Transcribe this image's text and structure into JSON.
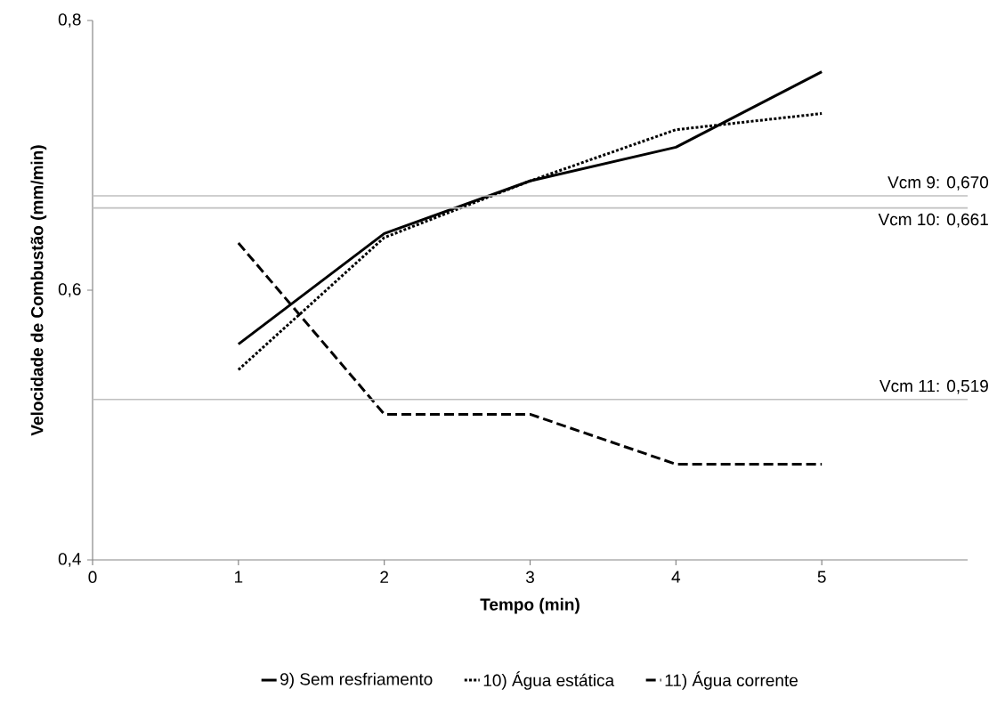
{
  "chart_data": {
    "type": "line",
    "xlabel": "Tempo (min)",
    "ylabel": "Velocidade de Combustão (mm/min)",
    "x": [
      1,
      2,
      3,
      4,
      5
    ],
    "series": [
      {
        "name": "9) Sem resfriamento",
        "color": "#000000",
        "line_style": "solid",
        "values": [
          0.56,
          0.642,
          0.681,
          0.706,
          0.762
        ]
      },
      {
        "name": "10) Água estática",
        "color": "#000000",
        "line_style": "dotted",
        "values": [
          0.541,
          0.639,
          0.681,
          0.719,
          0.731
        ]
      },
      {
        "name": "11) Água corrente",
        "color": "#000000",
        "line_style": "dashed",
        "values": [
          0.635,
          0.508,
          0.508,
          0.471,
          0.471
        ]
      }
    ],
    "xlim": [
      0,
      6
    ],
    "ylim": [
      0.4,
      0.8
    ],
    "xticks": [
      0,
      1,
      2,
      3,
      4,
      5
    ],
    "yticks": [
      {
        "value": 0.4,
        "label": "0,4"
      },
      {
        "value": 0.6,
        "label": "0,6"
      },
      {
        "value": 0.8,
        "label": "0,8"
      }
    ],
    "ref_lines": [
      {
        "axis": "y",
        "value": 0.67,
        "label": "Vcm 9: 0,670",
        "color": "#bfbfbf"
      },
      {
        "axis": "y",
        "value": 0.661,
        "label": "Vcm 10: 0,661",
        "color": "#bfbfbf"
      },
      {
        "axis": "y",
        "value": 0.519,
        "label": "Vcm 11: 0,519",
        "color": "#bfbfbf"
      }
    ],
    "grid": false,
    "legend": "bottom",
    "marker": "none"
  }
}
